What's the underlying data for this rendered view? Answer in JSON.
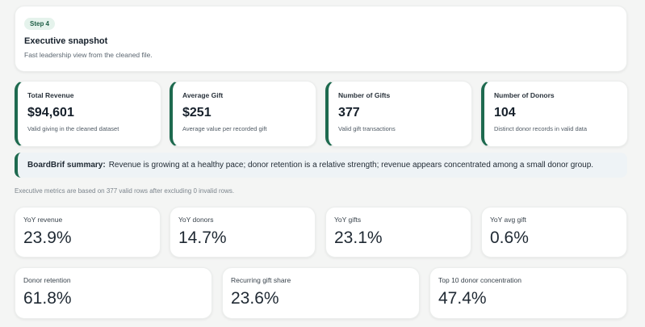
{
  "header": {
    "step_badge": "Step 4",
    "title": "Executive snapshot",
    "subtitle": "Fast leadership view from the cleaned file."
  },
  "kpis": [
    {
      "label": "Total Revenue",
      "value": "$94,601",
      "desc": "Valid giving in the cleaned dataset"
    },
    {
      "label": "Average Gift",
      "value": "$251",
      "desc": "Average value per recorded gift"
    },
    {
      "label": "Number of Gifts",
      "value": "377",
      "desc": "Valid gift transactions"
    },
    {
      "label": "Number of Donors",
      "value": "104",
      "desc": "Distinct donor records in valid data"
    }
  ],
  "summary": {
    "label": "BoardBrif summary:",
    "text": "Revenue is growing at a healthy pace; donor retention is a relative strength; revenue appears concentrated among a small donor group."
  },
  "footnote": "Executive metrics are based on 377 valid rows after excluding 0 invalid rows.",
  "metrics_row1": [
    {
      "label": "YoY revenue",
      "value": "23.9%"
    },
    {
      "label": "YoY donors",
      "value": "14.7%"
    },
    {
      "label": "YoY gifts",
      "value": "23.1%"
    },
    {
      "label": "YoY avg gift",
      "value": "0.6%"
    }
  ],
  "metrics_row2": [
    {
      "label": "Donor retention",
      "value": "61.8%"
    },
    {
      "label": "Recurring gift share",
      "value": "23.6%"
    },
    {
      "label": "Top 10 donor concentration",
      "value": "47.4%"
    }
  ],
  "colors": {
    "accent": "#1e6a4f",
    "badge_bg": "#e5f3ec",
    "summary_bg": "#eef3f6",
    "page_bg": "#f4f5f4"
  }
}
